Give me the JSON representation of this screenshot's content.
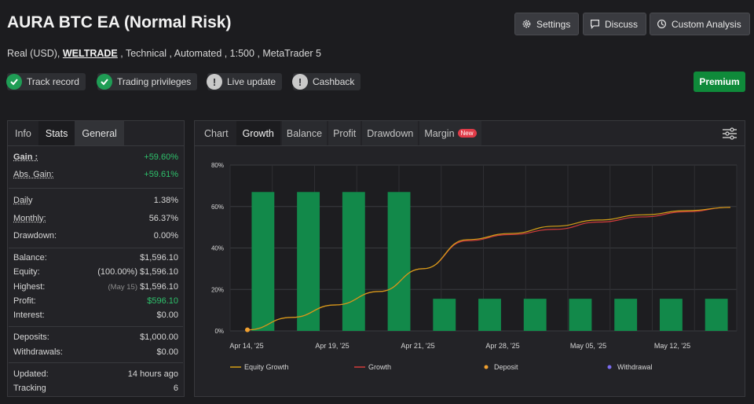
{
  "header": {
    "title": "AURA BTC EA (Normal Risk)",
    "sub_prefix": "Real (USD),",
    "broker": "WELTRADE",
    "sub_suffix": ", Technical , Automated , 1:500 , MetaTrader 5"
  },
  "buttons": {
    "settings": "Settings",
    "discuss": "Discuss",
    "custom": "Custom Analysis",
    "premium": "Premium"
  },
  "badges": {
    "track": "Track record",
    "privileges": "Trading privileges",
    "live": "Live update",
    "cashback": "Cashback",
    "warn_glyph": "!"
  },
  "left_tabs": {
    "info": "Info",
    "stats": "Stats",
    "general": "General"
  },
  "stats": {
    "gain_l": "Gain :",
    "gain_v": "+59.60%",
    "absgain_l": "Abs. Gain:",
    "absgain_v": "+59.61%",
    "daily_l": "Daily",
    "daily_v": "1.38%",
    "monthly_l": "Monthly:",
    "monthly_v": "56.37%",
    "drawdown_l": "Drawdown:",
    "drawdown_v": "0.00%",
    "balance_l": "Balance:",
    "balance_v": "$1,596.10",
    "equity_l": "Equity:",
    "equity_v": "(100.00%) $1,596.10",
    "highest_l": "Highest:",
    "highest_date": "(May 15)",
    "highest_v": "$1,596.10",
    "profit_l": "Profit:",
    "profit_v": "$596.10",
    "interest_l": "Interest:",
    "interest_v": "$0.00",
    "deposits_l": "Deposits:",
    "deposits_v": "$1,000.00",
    "withdrawals_l": "Withdrawals:",
    "withdrawals_v": "$0.00",
    "updated_l": "Updated:",
    "updated_v": "14 hours ago",
    "tracking_l": "Tracking",
    "tracking_v": "6"
  },
  "right_tabs": {
    "chart": "Chart",
    "growth": "Growth",
    "balance": "Balance",
    "profit": "Profit",
    "drawdown": "Drawdown",
    "margin": "Margin",
    "new": "New"
  },
  "colors": {
    "equity": "#d4a017",
    "growth": "#d23c3c",
    "deposit": "#f0a030",
    "withdrawal": "#7b6cf0",
    "bar": "#12894a"
  },
  "chart_data": {
    "type": "line",
    "y_ticks": [
      "0%",
      "20%",
      "40%",
      "60%",
      "80%"
    ],
    "ylim": [
      0,
      80
    ],
    "x_ticks": [
      "Apr 14, '25",
      "Apr 19, '25",
      "Apr 21, '25",
      "Apr 28, '25",
      "May 05, '25",
      "May 12, '25"
    ],
    "bars": [
      67,
      67,
      67,
      67,
      15.5,
      15.5,
      15.5,
      15.5,
      15.5,
      15.5,
      15.5
    ],
    "series": [
      {
        "name": "Equity Growth",
        "values": [
          0.5,
          6.5,
          12.5,
          19,
          30,
          44,
          47,
          50.5,
          53.5,
          56,
          58,
          59.6
        ]
      },
      {
        "name": "Growth",
        "values": [
          0.5,
          6.5,
          12.5,
          19,
          30,
          43.5,
          46.5,
          49,
          52.5,
          55,
          57.5,
          59.6
        ]
      }
    ],
    "deposit_points": [
      0.5
    ],
    "legend": [
      "Equity Growth",
      "Growth",
      "Deposit",
      "Withdrawal"
    ]
  }
}
